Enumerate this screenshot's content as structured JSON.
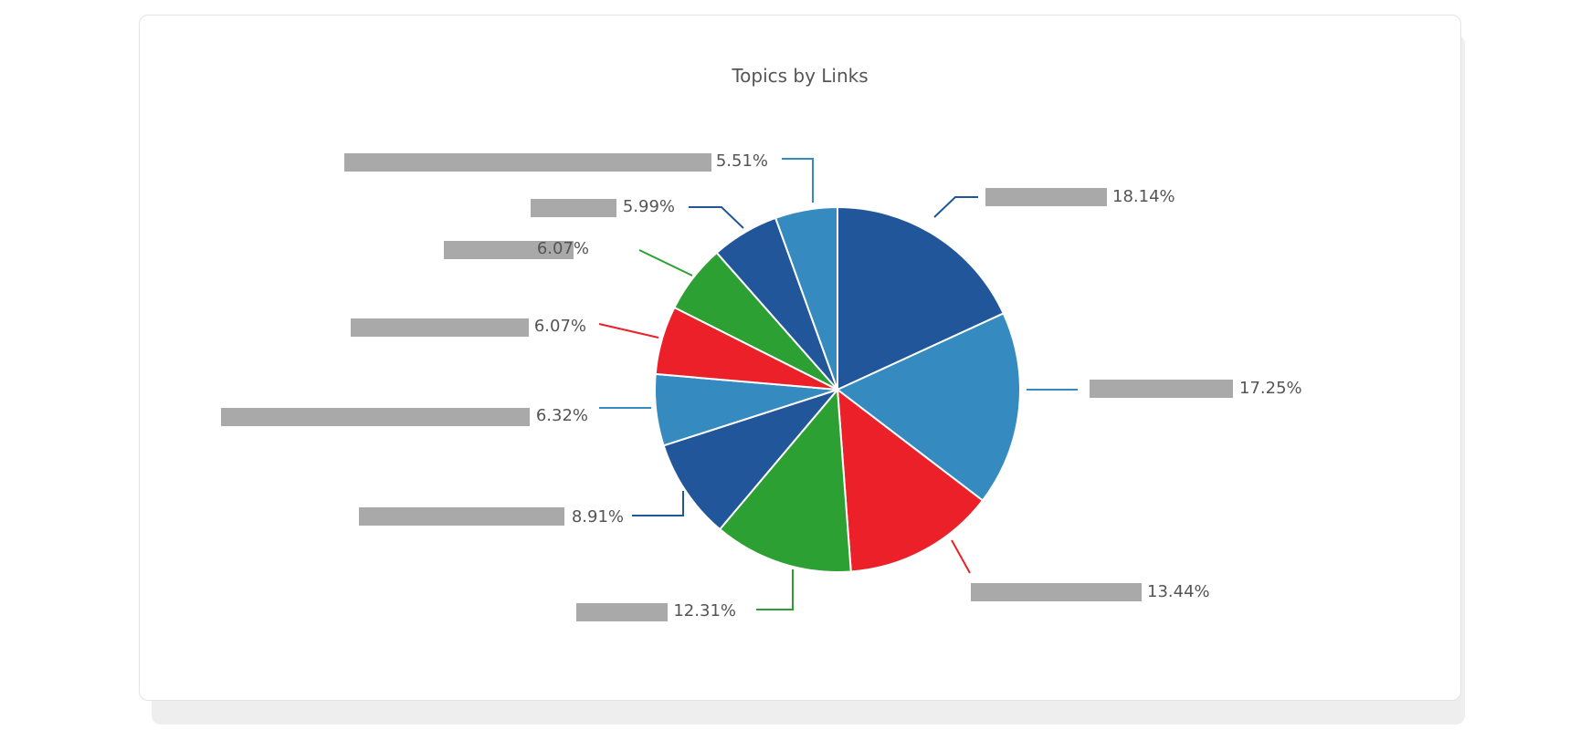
{
  "chart_data": {
    "type": "pie",
    "title": "Topics by Links",
    "legend": "none",
    "slices": [
      {
        "value": 18.14,
        "label": "18.14%",
        "color": "#21579a"
      },
      {
        "value": 17.25,
        "label": "17.25%",
        "color": "#358abf"
      },
      {
        "value": 13.44,
        "label": "13.44%",
        "color": "#ec2028"
      },
      {
        "value": 12.31,
        "label": "12.31%",
        "color": "#2ca032"
      },
      {
        "value": 8.91,
        "label": "8.91%",
        "color": "#21579a"
      },
      {
        "value": 6.32,
        "label": "6.32%",
        "color": "#358abf"
      },
      {
        "value": 6.07,
        "label": "6.07%",
        "color": "#ec2028"
      },
      {
        "value": 6.07,
        "label": "6.07%",
        "color": "#2ca032"
      },
      {
        "value": 5.99,
        "label": "5.99%",
        "color": "#21579a"
      },
      {
        "value": 5.51,
        "label": "5.51%",
        "color": "#358abf"
      }
    ],
    "redacted_label_color": "#a9a9a9"
  }
}
